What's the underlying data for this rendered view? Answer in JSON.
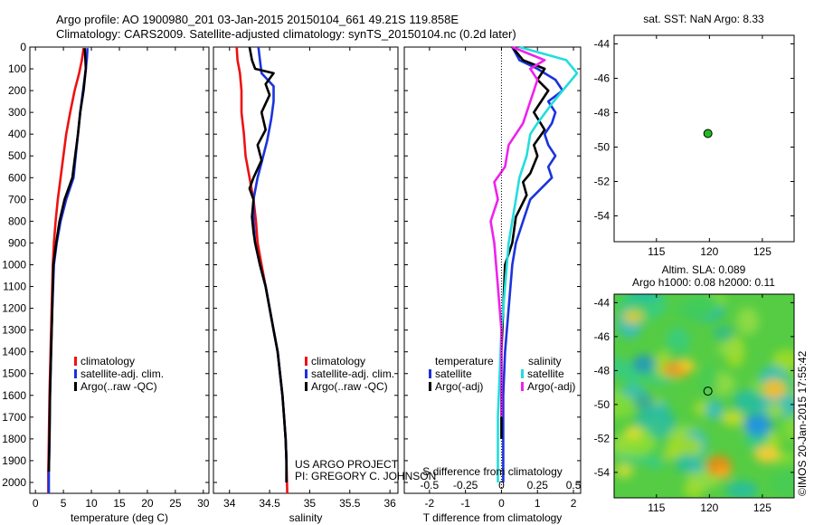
{
  "header": {
    "line1": "Argo profile: AO 1900980_201 03-Jan-2015 20150104_661 49.21S 119.858E",
    "line2": "Climatology: CARS2009. Satellite-adjusted climatology: synTS_20150104.nc (0.2d later)"
  },
  "credits": {
    "project": "US ARGO PROJECT",
    "pi": "PI: GREGORY C. JOHNSON",
    "imos": "©IMOS 20-Jan-2015 17:55:42"
  },
  "colors": {
    "climatology": "#ee1111",
    "satellite": "#1a33dd",
    "argo": "#000000",
    "satellite_salinity": "#22dddd",
    "argo_salinity": "#ee22ee",
    "float": "#22bb22"
  },
  "chart_data": [
    {
      "id": "temperature",
      "type": "line",
      "xlabel": "temperature (deg C)",
      "ylabel": "",
      "xlim": [
        -1,
        31
      ],
      "ylim": [
        2050,
        0
      ],
      "xticks": [
        "0",
        "5",
        "10",
        "15",
        "20",
        "25",
        "30"
      ],
      "yticks": [
        "0",
        "100",
        "200",
        "300",
        "400",
        "500",
        "600",
        "700",
        "800",
        "900",
        "1000",
        "1100",
        "1200",
        "1300",
        "1400",
        "1500",
        "1600",
        "1700",
        "1800",
        "1900",
        "2000"
      ],
      "legend": [
        "climatology",
        "satellite-adj. clim.",
        "Argo(..raw -QC)"
      ],
      "legend_position": "lower-right",
      "series": [
        {
          "name": "climatology",
          "color_key": "climatology",
          "points": [
            [
              8.6,
              5
            ],
            [
              8.3,
              60
            ],
            [
              7.8,
              120
            ],
            [
              7.0,
              200
            ],
            [
              6.2,
              300
            ],
            [
              5.5,
              400
            ],
            [
              5.0,
              500
            ],
            [
              4.5,
              600
            ],
            [
              4.0,
              700
            ],
            [
              3.6,
              800
            ],
            [
              3.3,
              900
            ],
            [
              3.1,
              1000
            ],
            [
              2.9,
              1200
            ],
            [
              2.7,
              1400
            ],
            [
              2.5,
              1600
            ],
            [
              2.4,
              1800
            ],
            [
              2.3,
              1950
            ],
            [
              2.3,
              2050
            ]
          ]
        },
        {
          "name": "satellite-adj. clim.",
          "color_key": "satellite",
          "points": [
            [
              9.3,
              5
            ],
            [
              9.2,
              50
            ],
            [
              9.0,
              100
            ],
            [
              8.5,
              200
            ],
            [
              8.0,
              300
            ],
            [
              7.6,
              400
            ],
            [
              7.2,
              500
            ],
            [
              6.8,
              600
            ],
            [
              5.5,
              700
            ],
            [
              4.5,
              800
            ],
            [
              3.8,
              900
            ],
            [
              3.3,
              1000
            ],
            [
              3.0,
              1200
            ],
            [
              2.8,
              1400
            ],
            [
              2.6,
              1600
            ],
            [
              2.5,
              1800
            ],
            [
              2.4,
              1950
            ],
            [
              2.4,
              2050
            ]
          ]
        },
        {
          "name": "Argo(..raw -QC)",
          "color_key": "argo",
          "points": [
            [
              8.8,
              5
            ],
            [
              8.9,
              50
            ],
            [
              9.0,
              100
            ],
            [
              8.6,
              200
            ],
            [
              8.0,
              300
            ],
            [
              7.6,
              400
            ],
            [
              7.1,
              500
            ],
            [
              6.6,
              600
            ],
            [
              5.2,
              700
            ],
            [
              4.3,
              800
            ],
            [
              3.7,
              900
            ],
            [
              3.2,
              1000
            ],
            [
              3.0,
              1200
            ],
            [
              2.8,
              1400
            ],
            [
              2.6,
              1600
            ],
            [
              2.5,
              1800
            ],
            [
              2.4,
              1950
            ]
          ]
        }
      ]
    },
    {
      "id": "salinity",
      "type": "line",
      "xlabel": "salinity",
      "ylabel": "",
      "xlim": [
        33.8,
        36.1
      ],
      "ylim": [
        2050,
        0
      ],
      "xticks": [
        "34",
        "34.5",
        "35",
        "35.5",
        "36"
      ],
      "legend": [
        "climatology",
        "satellite-adj. clim.",
        "Argo(..raw -QC)"
      ],
      "legend_position": "lower-right",
      "series": [
        {
          "name": "climatology",
          "color_key": "climatology",
          "points": [
            [
              34.09,
              0
            ],
            [
              34.1,
              60
            ],
            [
              34.13,
              120
            ],
            [
              34.15,
              200
            ],
            [
              34.15,
              300
            ],
            [
              34.18,
              400
            ],
            [
              34.2,
              500
            ],
            [
              34.25,
              600
            ],
            [
              34.3,
              700
            ],
            [
              34.33,
              800
            ],
            [
              34.35,
              900
            ],
            [
              34.4,
              1000
            ],
            [
              34.45,
              1100
            ],
            [
              34.5,
              1200
            ],
            [
              34.55,
              1300
            ],
            [
              34.6,
              1400
            ],
            [
              34.63,
              1500
            ],
            [
              34.66,
              1600
            ],
            [
              34.68,
              1700
            ],
            [
              34.7,
              1800
            ],
            [
              34.71,
              1900
            ],
            [
              34.72,
              2050
            ]
          ]
        },
        {
          "name": "satellite-adj. clim.",
          "color_key": "satellite",
          "points": [
            [
              34.36,
              0
            ],
            [
              34.38,
              60
            ],
            [
              34.4,
              120
            ],
            [
              34.55,
              180
            ],
            [
              34.55,
              250
            ],
            [
              34.52,
              330
            ],
            [
              34.47,
              430
            ],
            [
              34.4,
              530
            ],
            [
              34.35,
              600
            ],
            [
              34.3,
              700
            ],
            [
              34.3,
              800
            ],
            [
              34.32,
              900
            ],
            [
              34.38,
              1000
            ],
            [
              34.45,
              1100
            ],
            [
              34.5,
              1200
            ],
            [
              34.55,
              1300
            ],
            [
              34.6,
              1400
            ],
            [
              34.63,
              1500
            ],
            [
              34.66,
              1600
            ],
            [
              34.68,
              1700
            ],
            [
              34.7,
              1800
            ],
            [
              34.71,
              1900
            ],
            [
              34.71,
              2000
            ]
          ]
        },
        {
          "name": "Argo(..raw -QC)",
          "color_key": "argo",
          "points": [
            [
              34.25,
              0
            ],
            [
              34.28,
              60
            ],
            [
              34.32,
              100
            ],
            [
              34.55,
              120
            ],
            [
              34.45,
              170
            ],
            [
              34.5,
              220
            ],
            [
              34.4,
              300
            ],
            [
              34.45,
              380
            ],
            [
              34.35,
              450
            ],
            [
              34.4,
              520
            ],
            [
              34.3,
              600
            ],
            [
              34.25,
              650
            ],
            [
              34.3,
              700
            ],
            [
              34.28,
              780
            ],
            [
              34.3,
              850
            ],
            [
              34.32,
              900
            ],
            [
              34.38,
              1000
            ],
            [
              34.45,
              1100
            ],
            [
              34.5,
              1200
            ],
            [
              34.55,
              1300
            ],
            [
              34.6,
              1400
            ],
            [
              34.63,
              1500
            ],
            [
              34.66,
              1600
            ],
            [
              34.68,
              1700
            ],
            [
              34.7,
              1800
            ],
            [
              34.71,
              1900
            ],
            [
              34.71,
              2000
            ]
          ]
        }
      ]
    },
    {
      "id": "difference",
      "type": "line",
      "xlabel": "T difference from climatology",
      "top_xlabel": "S difference from climatology",
      "ylabel": "",
      "xlim": [
        -2.7,
        2.2
      ],
      "ylim": [
        2050,
        0
      ],
      "xticks": [
        "-2",
        "-1",
        "0",
        "1",
        "2"
      ],
      "top_xticks": [
        "-0.5",
        "-0.25",
        "0",
        "0.25",
        "0.5"
      ],
      "zero_line": "dotted",
      "legend_titles": [
        "temperature",
        "salinity"
      ],
      "legend": [
        "satellite",
        "Argo(-adj)",
        "satellite",
        "Argo(-adj)"
      ],
      "legend_position": "lower-center",
      "series": [
        {
          "name": "satellite",
          "color_key": "satellite",
          "points": [
            [
              0.3,
              0
            ],
            [
              0.5,
              60
            ],
            [
              1.0,
              100
            ],
            [
              1.5,
              150
            ],
            [
              1.7,
              200
            ],
            [
              1.3,
              250
            ],
            [
              1.5,
              300
            ],
            [
              1.4,
              350
            ],
            [
              1.2,
              400
            ],
            [
              1.3,
              450
            ],
            [
              1.5,
              500
            ],
            [
              1.3,
              550
            ],
            [
              1.4,
              600
            ],
            [
              1.1,
              650
            ],
            [
              0.8,
              700
            ],
            [
              0.6,
              800
            ],
            [
              0.4,
              900
            ],
            [
              0.3,
              1000
            ],
            [
              0.2,
              1200
            ],
            [
              0.1,
              1400
            ],
            [
              0.05,
              1600
            ],
            [
              0.05,
              1800
            ],
            [
              0.05,
              2000
            ]
          ]
        },
        {
          "name": "Argo(-adj)",
          "color_key": "argo",
          "points": [
            [
              0.3,
              0
            ],
            [
              0.6,
              60
            ],
            [
              1.2,
              100
            ],
            [
              1.0,
              150
            ],
            [
              1.3,
              200
            ],
            [
              0.9,
              300
            ],
            [
              1.2,
              380
            ],
            [
              0.9,
              450
            ],
            [
              1.0,
              500
            ],
            [
              0.8,
              580
            ],
            [
              0.6,
              620
            ],
            [
              0.7,
              680
            ],
            [
              0.4,
              780
            ],
            [
              0.3,
              900
            ],
            [
              0.1,
              1000
            ],
            [
              0.05,
              1200
            ],
            [
              0.0,
              1400
            ],
            [
              0.0,
              1600
            ],
            [
              0.0,
              1800
            ]
          ]
        },
        {
          "name": "satellite",
          "color_key": "satellite_salinity",
          "points": [
            [
              0.5,
              0
            ],
            [
              1.8,
              60
            ],
            [
              2.1,
              120
            ],
            [
              1.7,
              200
            ],
            [
              1.4,
              260
            ],
            [
              1.0,
              350
            ],
            [
              0.8,
              400
            ],
            [
              0.7,
              500
            ],
            [
              0.5,
              600
            ],
            [
              0.4,
              700
            ],
            [
              0.3,
              800
            ],
            [
              0.2,
              900
            ],
            [
              0.1,
              1100
            ],
            [
              0.0,
              1300
            ],
            [
              -0.05,
              1500
            ],
            [
              -0.1,
              1700
            ],
            [
              -0.1,
              1900
            ],
            [
              -0.1,
              2000
            ]
          ]
        },
        {
          "name": "Argo(-adj)",
          "color_key": "argo_salinity",
          "points": [
            [
              0.3,
              0
            ],
            [
              1.2,
              60
            ],
            [
              0.8,
              100
            ],
            [
              1.0,
              150
            ],
            [
              0.9,
              200
            ],
            [
              0.8,
              250
            ],
            [
              0.6,
              350
            ],
            [
              0.2,
              450
            ],
            [
              0.1,
              550
            ],
            [
              -0.2,
              620
            ],
            [
              -0.1,
              700
            ],
            [
              -0.3,
              800
            ],
            [
              -0.2,
              900
            ],
            [
              -0.1,
              1100
            ],
            [
              0.0,
              1300
            ],
            [
              0.0,
              1500
            ],
            [
              0.0,
              1700
            ]
          ]
        }
      ]
    },
    {
      "id": "sst-map",
      "type": "scatter",
      "title": "sat. SST: NaN Argo: 8.33",
      "xlim": [
        111,
        128
      ],
      "ylim": [
        -55.5,
        -43.5
      ],
      "xticks": [
        "115",
        "120",
        "125"
      ],
      "yticks": [
        "-44",
        "-46",
        "-48",
        "-50",
        "-52",
        "-54"
      ],
      "points": [
        {
          "x": 119.858,
          "y": -49.21
        }
      ]
    },
    {
      "id": "sla-map",
      "type": "heatmap",
      "title_line1": "Altim. SLA: 0.089",
      "title_line2": "Argo h1000: 0.08 h2000: 0.11",
      "xlim": [
        111,
        128
      ],
      "ylim": [
        -55.5,
        -43.5
      ],
      "xticks": [
        "115",
        "120",
        "125"
      ],
      "yticks": [
        "-44",
        "-46",
        "-48",
        "-50",
        "-52",
        "-54"
      ],
      "points": [
        {
          "x": 119.858,
          "y": -49.21
        }
      ]
    }
  ]
}
